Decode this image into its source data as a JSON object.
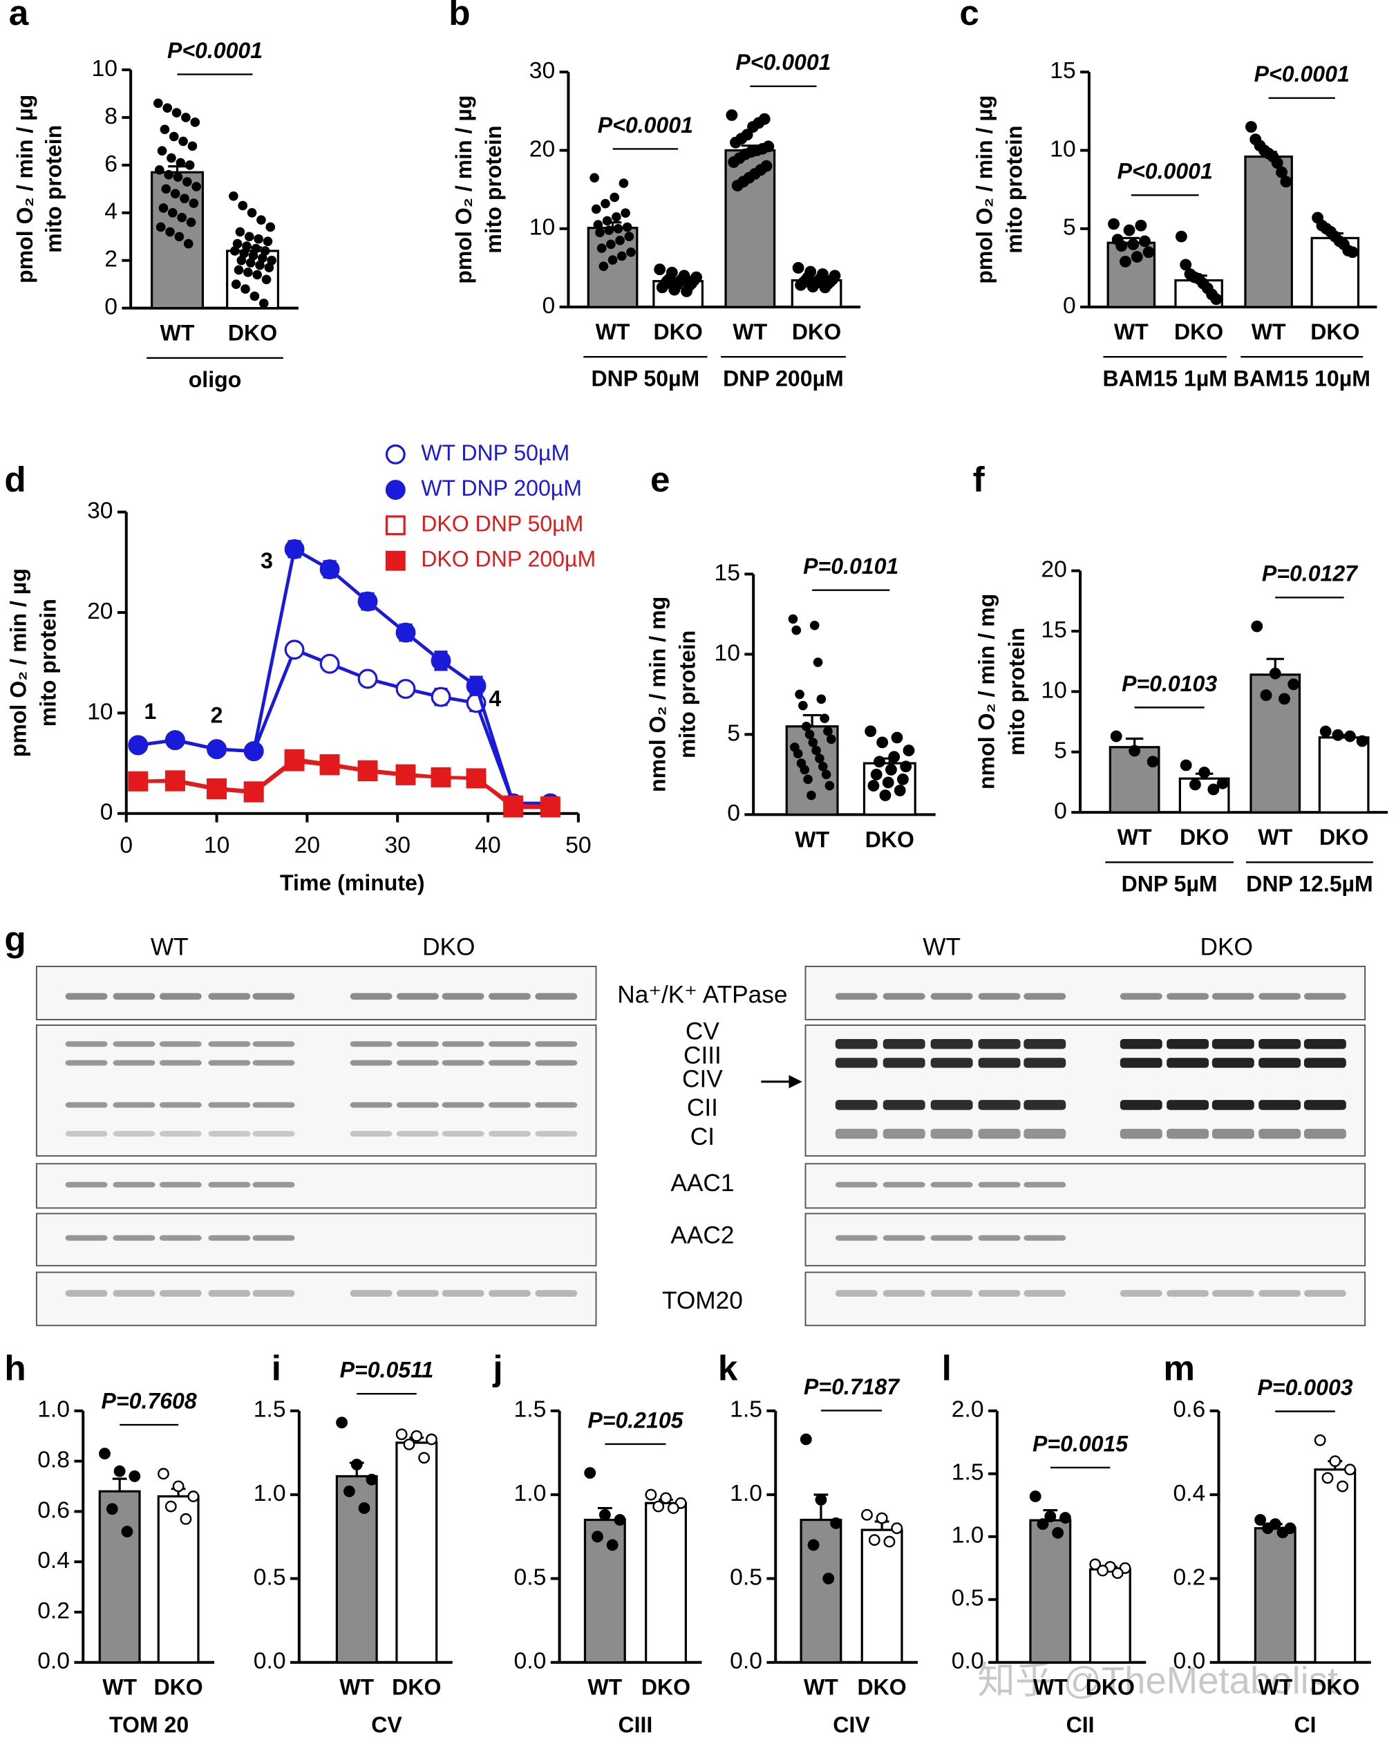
{
  "chart_data": [
    {
      "panel": "a",
      "type": "bar",
      "ylabel": [
        "pmol O₂ / min / µg",
        "mito protein"
      ],
      "ylim": [
        0,
        10
      ],
      "yticks": [
        0,
        2,
        4,
        6,
        8,
        10
      ],
      "categories": [
        "WT",
        "DKO"
      ],
      "values": [
        5.7,
        2.4
      ],
      "errors": [
        0.25,
        0.15
      ],
      "colors": [
        "#8c8c8c",
        "#ffffff"
      ],
      "marker_fill": [
        "#000000",
        "#000000"
      ],
      "points": [
        [
          8.6,
          8.4,
          8.2,
          8.0,
          7.8,
          7.5,
          7.2,
          7.0,
          6.8,
          6.6,
          6.3,
          6.1,
          6.0,
          5.8,
          5.6,
          5.5,
          5.3,
          5.1,
          5.0,
          4.8,
          4.6,
          4.4,
          4.2,
          4.0,
          3.8,
          3.6,
          3.4,
          3.2,
          3.0,
          2.7
        ],
        [
          4.7,
          4.3,
          4.0,
          3.7,
          3.4,
          3.2,
          3.0,
          2.9,
          2.8,
          2.7,
          2.6,
          2.5,
          2.4,
          2.4,
          2.3,
          2.2,
          2.1,
          2.0,
          2.0,
          1.9,
          1.8,
          1.7,
          1.6,
          1.5,
          1.4,
          1.2,
          1.0,
          0.8,
          0.5,
          0.2
        ]
      ],
      "pvalues": [
        "P<0.0001"
      ],
      "groups": [
        "oligo"
      ]
    },
    {
      "panel": "b",
      "type": "bar",
      "ylabel": [
        "pmol O₂ / min / µg",
        "mito protein"
      ],
      "ylim": [
        0,
        30
      ],
      "yticks": [
        0,
        10,
        20,
        30
      ],
      "categories": [
        "WT",
        "DKO",
        "WT",
        "DKO"
      ],
      "values": [
        10.1,
        3.3,
        20.0,
        3.4
      ],
      "errors": [
        0.7,
        0.3,
        0.6,
        0.2
      ],
      "colors": [
        "#8c8c8c",
        "#ffffff",
        "#8c8c8c",
        "#ffffff"
      ],
      "marker_fill": [
        "#000000",
        "#000000",
        "#000000",
        "#000000"
      ],
      "points": [
        [
          16.5,
          15.8,
          14.0,
          13.2,
          12.5,
          12.0,
          11.5,
          11.0,
          10.5,
          10.2,
          10.0,
          9.8,
          9.5,
          9.0,
          8.5,
          8.0,
          7.5,
          7.0,
          6.5,
          6.0,
          5.2
        ],
        [
          4.8,
          4.4,
          4.0,
          3.8,
          3.6,
          3.5,
          3.4,
          3.3,
          3.2,
          3.0,
          2.9,
          2.8,
          2.7,
          2.5,
          2.2,
          2.0
        ],
        [
          24.5,
          24.0,
          23.5,
          23.0,
          22.0,
          21.5,
          21.0,
          20.5,
          20.2,
          20.0,
          19.8,
          19.5,
          19.0,
          18.5,
          18.0,
          17.5,
          17.0,
          16.5,
          16.0,
          15.5
        ],
        [
          5.0,
          4.5,
          4.2,
          4.0,
          3.8,
          3.6,
          3.5,
          3.4,
          3.3,
          3.2,
          3.1,
          3.0,
          2.9,
          2.8,
          2.6,
          2.5
        ]
      ],
      "pvalues": [
        "P<0.0001",
        "P<0.0001"
      ],
      "groups": [
        "DNP 50µM",
        "DNP 200µM"
      ]
    },
    {
      "panel": "c",
      "type": "bar",
      "ylabel": [
        "pmol O₂ / min / µg",
        "mito protein"
      ],
      "ylim": [
        0,
        15
      ],
      "yticks": [
        0,
        5,
        10,
        15
      ],
      "categories": [
        "WT",
        "DKO",
        "WT",
        "DKO"
      ],
      "values": [
        4.1,
        1.7,
        9.6,
        4.4
      ],
      "errors": [
        0.3,
        0.3,
        0.3,
        0.3
      ],
      "colors": [
        "#8c8c8c",
        "#ffffff",
        "#8c8c8c",
        "#ffffff"
      ],
      "marker_fill": [
        "#000000",
        "#000000",
        "#000000",
        "#000000"
      ],
      "points": [
        [
          5.3,
          5.2,
          4.9,
          4.3,
          4.2,
          4.0,
          3.9,
          3.5,
          3.2,
          2.9
        ],
        [
          4.5,
          2.7,
          2.1,
          1.9,
          1.8,
          1.5,
          1.2,
          0.8,
          0.5
        ],
        [
          11.5,
          10.7,
          10.3,
          10.0,
          9.8,
          9.6,
          9.2,
          8.6,
          8.0
        ],
        [
          5.7,
          5.2,
          5.0,
          4.8,
          4.5,
          4.2,
          4.0,
          3.6,
          3.5
        ]
      ],
      "pvalues": [
        "P<0.0001",
        "P<0.0001"
      ],
      "groups": [
        "BAM15 1µM",
        "BAM15 10µM"
      ]
    },
    {
      "panel": "d",
      "type": "line",
      "ylabel": [
        "pmol O₂ / min / µg",
        "mito protein"
      ],
      "xlabel": "Time (minute)",
      "ylim": [
        0,
        30
      ],
      "yticks": [
        0,
        10,
        20,
        30
      ],
      "xlim": [
        0,
        50
      ],
      "xticks": [
        0,
        10,
        20,
        30,
        40,
        50
      ],
      "x": [
        1.3,
        5.4,
        10,
        14.1,
        18.6,
        22.5,
        26.7,
        30.9,
        34.8,
        38.7,
        42.8,
        46.9
      ],
      "legend": "upper right",
      "annotations": [
        "1",
        "2",
        "3",
        "4"
      ],
      "series": [
        {
          "name": "WT DNP 50µM",
          "color": "#1a1adb",
          "marker": "open-circle",
          "values": [
            6.8,
            7.3,
            6.4,
            6.2,
            16.3,
            14.9,
            13.4,
            12.4,
            11.6,
            11.0,
            1.0,
            1.0
          ],
          "errors": [
            0.3,
            0.3,
            0.3,
            0.3,
            0.6,
            0.6,
            0.6,
            0.6,
            0.8,
            0.8,
            0.2,
            0.2
          ]
        },
        {
          "name": "WT DNP 200µM",
          "color": "#1a1adb",
          "marker": "circle",
          "values": [
            6.8,
            7.3,
            6.4,
            6.2,
            26.3,
            24.3,
            21.1,
            18.0,
            15.2,
            12.7,
            1.0,
            1.0
          ],
          "errors": [
            0.3,
            0.3,
            0.3,
            0.3,
            0.8,
            0.8,
            0.8,
            0.8,
            0.9,
            0.9,
            0.2,
            0.2
          ]
        },
        {
          "name": "DKO DNP 50µM",
          "color": "#e31a1c",
          "marker": "open-square",
          "values": [
            3.2,
            3.2,
            2.4,
            2.1,
            5.2,
            4.8,
            4.2,
            3.8,
            3.6,
            3.5,
            0.8,
            0.7
          ],
          "errors": [
            0.3,
            0.3,
            0.3,
            0.3,
            0.4,
            0.3,
            0.3,
            0.3,
            0.3,
            0.3,
            0.2,
            0.2
          ]
        },
        {
          "name": "DKO DNP 200µM",
          "color": "#e31a1c",
          "marker": "square",
          "values": [
            3.2,
            3.3,
            2.5,
            2.2,
            5.4,
            4.9,
            4.3,
            3.9,
            3.6,
            3.5,
            0.6,
            0.6
          ],
          "errors": [
            0.3,
            0.3,
            0.3,
            0.3,
            0.4,
            0.3,
            0.3,
            0.3,
            0.3,
            0.3,
            0.2,
            0.2
          ]
        }
      ]
    },
    {
      "panel": "e",
      "type": "bar",
      "ylabel": [
        "nmol O₂ / min / mg",
        "mito protein"
      ],
      "ylim": [
        0,
        15
      ],
      "yticks": [
        0,
        5,
        10,
        15
      ],
      "categories": [
        "WT",
        "DKO"
      ],
      "values": [
        5.5,
        3.2
      ],
      "errors": [
        0.7,
        0.3
      ],
      "colors": [
        "#8c8c8c",
        "#ffffff"
      ],
      "marker_fill": [
        "#000000",
        "#000000"
      ],
      "points": [
        [
          12.2,
          11.8,
          11.5,
          9.5,
          7.5,
          7.2,
          6.8,
          6.0,
          5.5,
          5.2,
          5.0,
          4.7,
          4.5,
          4.2,
          4.0,
          3.8,
          3.5,
          3.2,
          3.0,
          2.8,
          2.5,
          2.2,
          1.8,
          1.2
        ],
        [
          5.2,
          4.8,
          4.5,
          4.0,
          3.6,
          3.3,
          3.0,
          2.8,
          2.5,
          2.2,
          2.0,
          1.8,
          1.5,
          1.2
        ]
      ],
      "pvalues": [
        "P=0.0101"
      ]
    },
    {
      "panel": "f",
      "type": "bar",
      "ylabel": [
        "nmol O₂ / min / mg",
        "mito protein"
      ],
      "ylim": [
        0,
        20
      ],
      "yticks": [
        0,
        5,
        10,
        15,
        20
      ],
      "categories": [
        "WT",
        "DKO",
        "WT",
        "DKO"
      ],
      "values": [
        5.4,
        2.8,
        11.4,
        6.2
      ],
      "errors": [
        0.7,
        0.4,
        1.3,
        0.2
      ],
      "colors": [
        "#8c8c8c",
        "#ffffff",
        "#8c8c8c",
        "#ffffff"
      ],
      "marker_fill": [
        "#000000",
        "#000000",
        "#000000",
        "#000000"
      ],
      "points": [
        [
          6.3,
          5.1,
          4.2
        ],
        [
          3.9,
          3.3,
          2.4,
          2.3,
          1.9
        ],
        [
          15.4,
          11.5,
          10.6,
          9.7,
          9.4
        ],
        [
          6.7,
          6.4,
          6.3,
          5.9
        ]
      ],
      "pvalues": [
        "P=0.0103",
        "P=0.0127"
      ],
      "groups": [
        "DNP 5µM",
        "DNP 12.5µM"
      ]
    },
    {
      "panel": "h",
      "type": "bar",
      "xlabel": "TOM 20",
      "ylim": [
        0,
        1
      ],
      "yticks": [
        {
          "value": 0,
          "label": "0.0"
        },
        0.2,
        0.4,
        0.6,
        0.8,
        {
          "value": 1,
          "label": "1.0"
        }
      ],
      "categories": [
        "WT",
        "DKO"
      ],
      "values": [
        0.68,
        0.66
      ],
      "errors": [
        0.05,
        0.03
      ],
      "colors": [
        "#8c8c8c",
        "#ffffff"
      ],
      "marker_fill": [
        "#000000",
        "#ffffff"
      ],
      "points": [
        [
          0.83,
          0.76,
          0.74,
          0.61,
          0.52
        ],
        [
          0.75,
          0.7,
          0.66,
          0.62,
          0.57
        ]
      ],
      "pvalues": [
        "P=0.7608"
      ]
    },
    {
      "panel": "i",
      "type": "bar",
      "xlabel": "CV",
      "ylim": [
        0,
        1.5
      ],
      "yticks": [
        {
          "value": 0,
          "label": "0.0"
        },
        0.5,
        {
          "value": 1,
          "label": "1.0"
        },
        1.5
      ],
      "categories": [
        "WT",
        "DKO"
      ],
      "values": [
        1.11,
        1.31
      ],
      "errors": [
        0.08,
        0.03
      ],
      "colors": [
        "#8c8c8c",
        "#ffffff"
      ],
      "marker_fill": [
        "#000000",
        "#ffffff"
      ],
      "points": [
        [
          1.43,
          1.18,
          1.09,
          1.02,
          0.92
        ],
        [
          1.36,
          1.35,
          1.33,
          1.3,
          1.22
        ]
      ],
      "pvalues": [
        "P=0.0511"
      ]
    },
    {
      "panel": "j",
      "type": "bar",
      "xlabel": "CIII",
      "ylim": [
        0,
        1.5
      ],
      "yticks": [
        {
          "value": 0,
          "label": "0.0"
        },
        0.5,
        {
          "value": 1,
          "label": "1.0"
        },
        1.5
      ],
      "categories": [
        "WT",
        "DKO"
      ],
      "values": [
        0.85,
        0.95
      ],
      "errors": [
        0.07,
        0.02
      ],
      "colors": [
        "#8c8c8c",
        "#ffffff"
      ],
      "marker_fill": [
        "#000000",
        "#ffffff"
      ],
      "points": [
        [
          1.13,
          0.88,
          0.85,
          0.75,
          0.7
        ],
        [
          1.0,
          0.98,
          0.95,
          0.93,
          0.92
        ]
      ],
      "pvalues": [
        "P=0.2105"
      ]
    },
    {
      "panel": "k",
      "type": "bar",
      "xlabel": "CIV",
      "ylim": [
        0,
        1.5
      ],
      "yticks": [
        {
          "value": 0,
          "label": "0.0"
        },
        0.5,
        {
          "value": 1,
          "label": "1.0"
        },
        1.5
      ],
      "categories": [
        "WT",
        "DKO"
      ],
      "values": [
        0.85,
        0.79
      ],
      "errors": [
        0.15,
        0.05
      ],
      "colors": [
        "#8c8c8c",
        "#ffffff"
      ],
      "marker_fill": [
        "#000000",
        "#ffffff"
      ],
      "points": [
        [
          1.33,
          0.97,
          0.83,
          0.7,
          0.5
        ],
        [
          0.88,
          0.86,
          0.8,
          0.73,
          0.72
        ]
      ],
      "pvalues": [
        "P=0.7187"
      ]
    },
    {
      "panel": "l",
      "type": "bar",
      "xlabel": "CII",
      "ylim": [
        0,
        2
      ],
      "yticks": [
        {
          "value": 0,
          "label": "0.0"
        },
        0.5,
        {
          "value": 1,
          "label": "1.0"
        },
        1.5,
        {
          "value": 2,
          "label": "2.0"
        }
      ],
      "categories": [
        "WT",
        "DKO"
      ],
      "values": [
        1.13,
        0.74
      ],
      "errors": [
        0.08,
        0.02
      ],
      "colors": [
        "#8c8c8c",
        "#ffffff"
      ],
      "marker_fill": [
        "#000000",
        "#ffffff"
      ],
      "points": [
        [
          1.32,
          1.16,
          1.15,
          1.1,
          1.03
        ],
        [
          0.78,
          0.76,
          0.75,
          0.73,
          0.71
        ]
      ],
      "pvalues": [
        "P=0.0015"
      ]
    },
    {
      "panel": "m",
      "type": "bar",
      "xlabel": "CI",
      "ylim": [
        0,
        0.6
      ],
      "yticks": [
        {
          "value": 0,
          "label": "0.0"
        },
        0.2,
        0.4,
        0.6
      ],
      "categories": [
        "WT",
        "DKO"
      ],
      "values": [
        0.32,
        0.46
      ],
      "errors": [
        0.01,
        0.02
      ],
      "colors": [
        "#8c8c8c",
        "#ffffff"
      ],
      "marker_fill": [
        "#000000",
        "#ffffff"
      ],
      "points": [
        [
          0.34,
          0.33,
          0.32,
          0.32,
          0.31
        ],
        [
          0.53,
          0.48,
          0.46,
          0.44,
          0.42
        ]
      ],
      "pvalues": [
        "P=0.0003"
      ]
    }
  ],
  "blot": {
    "panel": "g",
    "groups_left": [
      "WT",
      "DKO"
    ],
    "groups_right": [
      "WT",
      "DKO"
    ],
    "row_labels": [
      "Na⁺/K⁺ ATPase",
      "CV",
      "CIII",
      "CIV",
      "CII",
      "CI",
      "AAC1",
      "AAC2",
      "TOM20"
    ]
  },
  "watermark": "知乎 @TheMetabolist"
}
